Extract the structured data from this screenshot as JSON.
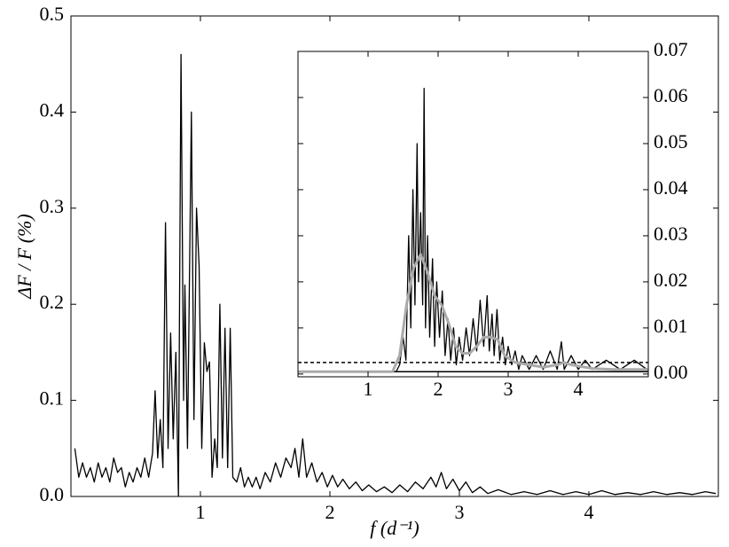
{
  "chart_data": [
    {
      "type": "line",
      "xlabel": "f (d⁻¹)",
      "ylabel": "ΔF / F (%)",
      "xlim": [
        0,
        5
      ],
      "ylim": [
        0,
        0.5
      ],
      "xticks": [
        1,
        2,
        3,
        4
      ],
      "yticks": [
        {
          "value": 0,
          "label": "0.0"
        },
        {
          "value": 0.1,
          "label": "0.1"
        },
        {
          "value": 0.2,
          "label": "0.2"
        },
        {
          "value": 0.3,
          "label": "0.3"
        },
        {
          "value": 0.4,
          "label": "0.4"
        },
        {
          "value": 0.5,
          "label": "0.5"
        }
      ],
      "yaxis_side": "left",
      "series": [
        {
          "color": "#000000",
          "x": [
            0.03,
            0.06,
            0.09,
            0.12,
            0.15,
            0.18,
            0.21,
            0.24,
            0.27,
            0.3,
            0.33,
            0.36,
            0.39,
            0.42,
            0.45,
            0.48,
            0.51,
            0.54,
            0.57,
            0.6,
            0.63,
            0.65,
            0.67,
            0.69,
            0.71,
            0.73,
            0.75,
            0.77,
            0.79,
            0.81,
            0.83,
            0.85,
            0.87,
            0.88,
            0.9,
            0.93,
            0.95,
            0.97,
            0.99,
            1.01,
            1.03,
            1.05,
            1.07,
            1.09,
            1.11,
            1.13,
            1.15,
            1.17,
            1.19,
            1.21,
            1.23,
            1.25,
            1.28,
            1.31,
            1.34,
            1.37,
            1.4,
            1.43,
            1.46,
            1.5,
            1.54,
            1.58,
            1.62,
            1.66,
            1.7,
            1.73,
            1.76,
            1.79,
            1.82,
            1.86,
            1.9,
            1.94,
            1.98,
            2.02,
            2.06,
            2.1,
            2.15,
            2.2,
            2.25,
            2.3,
            2.36,
            2.42,
            2.48,
            2.54,
            2.6,
            2.66,
            2.72,
            2.78,
            2.82,
            2.86,
            2.9,
            2.95,
            3.0,
            3.05,
            3.1,
            3.16,
            3.22,
            3.3,
            3.4,
            3.5,
            3.6,
            3.7,
            3.8,
            3.9,
            4.0,
            4.1,
            4.2,
            4.3,
            4.4,
            4.5,
            4.6,
            4.7,
            4.8,
            4.9,
            4.98
          ],
          "values": [
            0.05,
            0.02,
            0.035,
            0.02,
            0.03,
            0.015,
            0.035,
            0.02,
            0.03,
            0.015,
            0.04,
            0.025,
            0.03,
            0.01,
            0.025,
            0.015,
            0.03,
            0.02,
            0.04,
            0.02,
            0.045,
            0.11,
            0.04,
            0.08,
            0.03,
            0.285,
            0.05,
            0.17,
            0.06,
            0.15,
            0.0,
            0.46,
            0.1,
            0.22,
            0.05,
            0.4,
            0.08,
            0.3,
            0.24,
            0.05,
            0.16,
            0.13,
            0.14,
            0.02,
            0.06,
            0.03,
            0.2,
            0.04,
            0.175,
            0.03,
            0.175,
            0.02,
            0.015,
            0.03,
            0.01,
            0.02,
            0.01,
            0.02,
            0.008,
            0.025,
            0.015,
            0.035,
            0.02,
            0.04,
            0.03,
            0.05,
            0.02,
            0.06,
            0.02,
            0.035,
            0.015,
            0.025,
            0.01,
            0.022,
            0.01,
            0.018,
            0.008,
            0.015,
            0.006,
            0.012,
            0.005,
            0.01,
            0.004,
            0.012,
            0.005,
            0.015,
            0.008,
            0.02,
            0.01,
            0.025,
            0.008,
            0.018,
            0.006,
            0.015,
            0.004,
            0.01,
            0.003,
            0.007,
            0.002,
            0.005,
            0.002,
            0.006,
            0.002,
            0.005,
            0.002,
            0.006,
            0.002,
            0.004,
            0.002,
            0.005,
            0.002,
            0.004,
            0.002,
            0.005,
            0.003
          ]
        }
      ]
    },
    {
      "type": "line",
      "xlim": [
        0,
        5
      ],
      "ylim": [
        -0.0006,
        0.07
      ],
      "xticks": [
        1,
        2,
        3,
        4
      ],
      "yticks": [
        {
          "value": 0,
          "label": "0.00"
        },
        {
          "value": 0.01,
          "label": "0.01"
        },
        {
          "value": 0.02,
          "label": "0.02"
        },
        {
          "value": 0.03,
          "label": "0.03"
        },
        {
          "value": 0.04,
          "label": "0.04"
        },
        {
          "value": 0.05,
          "label": "0.05"
        },
        {
          "value": 0.06,
          "label": "0.06"
        },
        {
          "value": 0.07,
          "label": "0.07"
        }
      ],
      "yaxis_side": "right",
      "hlines": [
        {
          "value": 0.0025,
          "style": "dashed",
          "color": "#000000"
        },
        {
          "value": 0.0005,
          "style": "solid",
          "color": "#000000"
        }
      ],
      "series": [
        {
          "color": "#000000",
          "x": [
            0.0,
            1.4,
            1.45,
            1.5,
            1.54,
            1.58,
            1.61,
            1.64,
            1.67,
            1.7,
            1.72,
            1.75,
            1.78,
            1.8,
            1.82,
            1.85,
            1.88,
            1.92,
            1.95,
            1.98,
            2.02,
            2.06,
            2.1,
            2.14,
            2.18,
            2.22,
            2.26,
            2.3,
            2.35,
            2.4,
            2.45,
            2.5,
            2.55,
            2.6,
            2.65,
            2.7,
            2.73,
            2.77,
            2.8,
            2.84,
            2.88,
            2.92,
            2.96,
            3.0,
            3.05,
            3.1,
            3.15,
            3.2,
            3.3,
            3.4,
            3.5,
            3.6,
            3.7,
            3.76,
            3.8,
            3.9,
            4.0,
            4.1,
            4.2,
            4.4,
            4.6,
            4.8,
            4.98
          ],
          "values": [
            0.0005,
            0.0005,
            0.002,
            0.008,
            0.003,
            0.03,
            0.01,
            0.04,
            0.015,
            0.05,
            0.02,
            0.035,
            0.015,
            0.062,
            0.01,
            0.03,
            0.008,
            0.025,
            0.006,
            0.02,
            0.008,
            0.018,
            0.004,
            0.012,
            0.003,
            0.01,
            0.002,
            0.008,
            0.003,
            0.01,
            0.004,
            0.012,
            0.005,
            0.016,
            0.006,
            0.017,
            0.005,
            0.013,
            0.004,
            0.014,
            0.003,
            0.008,
            0.002,
            0.006,
            0.002,
            0.005,
            0.001,
            0.004,
            0.001,
            0.004,
            0.001,
            0.005,
            0.001,
            0.007,
            0.001,
            0.004,
            0.001,
            0.003,
            0.001,
            0.003,
            0.001,
            0.003,
            0.001
          ]
        },
        {
          "color": "#aaaaaa",
          "x": [
            0,
            1.35,
            1.45,
            1.55,
            1.65,
            1.75,
            1.85,
            1.95,
            2.05,
            2.15,
            2.25,
            2.35,
            2.45,
            2.55,
            2.65,
            2.75,
            2.85,
            2.95,
            3.1,
            3.3,
            3.5,
            3.7,
            3.8,
            3.9,
            4.2,
            4.5,
            5.0
          ],
          "values": [
            0.0005,
            0.0005,
            0.004,
            0.015,
            0.023,
            0.026,
            0.022,
            0.017,
            0.015,
            0.011,
            0.006,
            0.0045,
            0.0045,
            0.006,
            0.008,
            0.008,
            0.0075,
            0.004,
            0.0025,
            0.002,
            0.0015,
            0.002,
            0.0025,
            0.002,
            0.0012,
            0.001,
            0.001
          ]
        }
      ]
    }
  ]
}
